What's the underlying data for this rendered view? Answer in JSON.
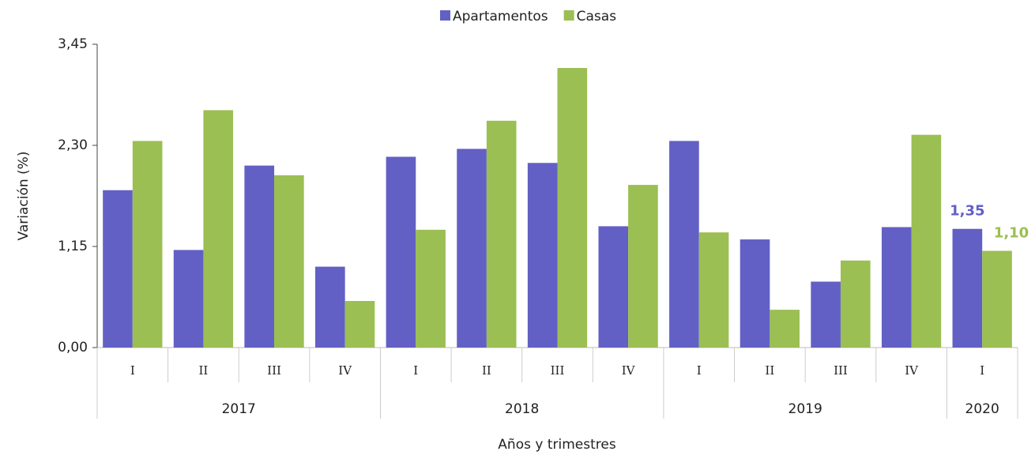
{
  "chart_data": {
    "type": "bar",
    "x_label": "Años y trimestres",
    "y_label": "Variación (%)",
    "groups": [
      {
        "label": "2017",
        "categories": [
          "I",
          "II",
          "III",
          "IV"
        ]
      },
      {
        "label": "2018",
        "categories": [
          "I",
          "II",
          "III",
          "IV"
        ]
      },
      {
        "label": "2019",
        "categories": [
          "I",
          "II",
          "III",
          "IV"
        ]
      },
      {
        "label": "2020",
        "categories": [
          "I"
        ]
      }
    ],
    "series": [
      {
        "name": "Apartamentos",
        "color": "#6260c5",
        "values": [
          1.79,
          1.11,
          2.07,
          0.92,
          2.17,
          2.26,
          2.1,
          1.38,
          2.35,
          1.23,
          0.75,
          1.37,
          1.35
        ],
        "value_labels": [
          null,
          null,
          null,
          null,
          null,
          null,
          null,
          null,
          null,
          null,
          null,
          null,
          "1,35"
        ]
      },
      {
        "name": "Casas",
        "color": "#9bbf52",
        "values": [
          2.35,
          2.7,
          1.96,
          0.53,
          1.34,
          2.58,
          3.18,
          1.85,
          1.31,
          0.43,
          0.99,
          2.42,
          1.1
        ],
        "value_labels": [
          null,
          null,
          null,
          null,
          null,
          null,
          null,
          null,
          null,
          null,
          null,
          null,
          "1,10"
        ]
      }
    ],
    "ylim": [
      0,
      3.45
    ],
    "yticks": [
      {
        "value": 0,
        "label": "0,00"
      },
      {
        "value": 1.15,
        "label": "1,15"
      },
      {
        "value": 2.3,
        "label": "2,30"
      },
      {
        "value": 3.45,
        "label": "3,45"
      }
    ],
    "legend": "top"
  }
}
